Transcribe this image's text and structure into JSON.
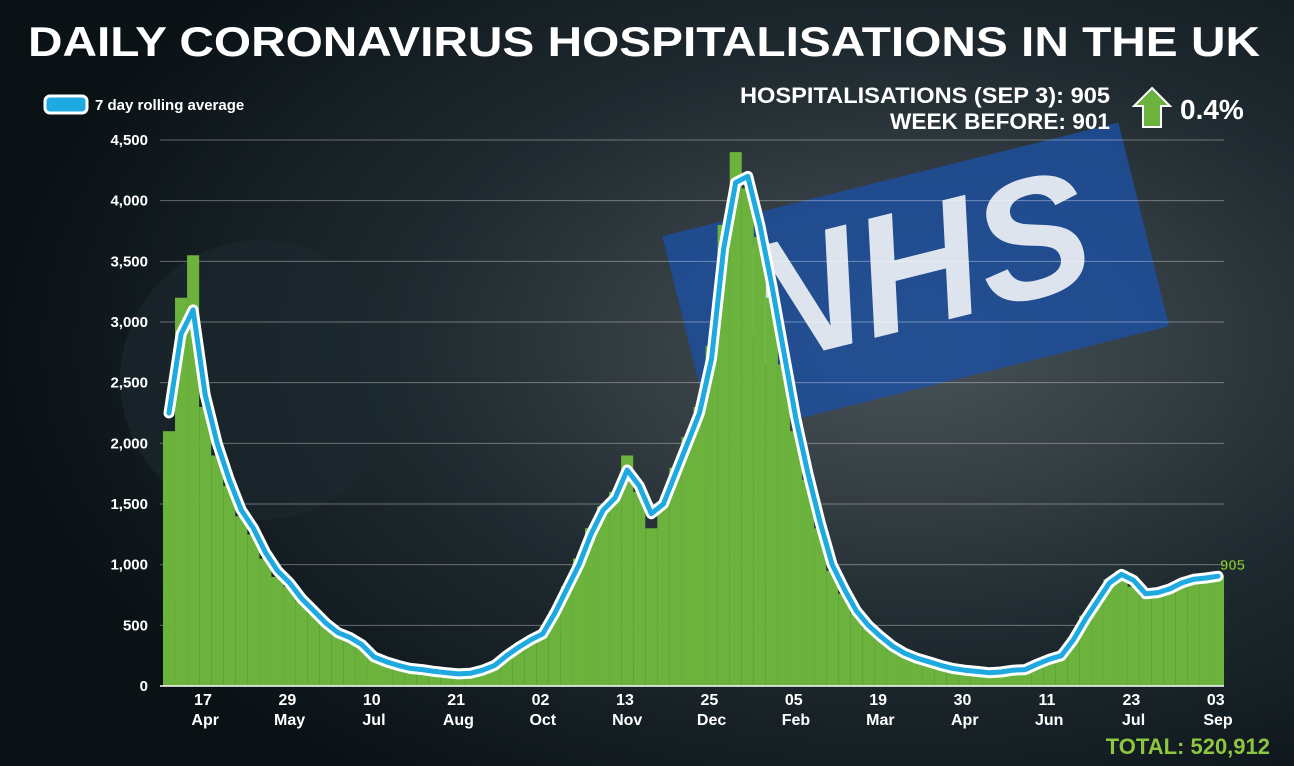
{
  "chart_data": {
    "type": "bar-line",
    "title": "DAILY CORONAVIRUS HOSPITALISATIONS  IN THE UK",
    "background_sign": "NHS",
    "stat_today": "HOSPITALISATIONS (SEP 3): 905",
    "stat_week_before": "WEEK BEFORE: 901",
    "stat_change": "0.4%",
    "end_label": "905",
    "total": "TOTAL: 520,912",
    "categories": [
      null,
      null,
      null,
      "17 Apr",
      null,
      null,
      null,
      null,
      null,
      null,
      "29 May",
      null,
      null,
      null,
      null,
      null,
      null,
      "10 Jul",
      null,
      null,
      null,
      null,
      null,
      null,
      "21 Aug",
      null,
      null,
      null,
      null,
      null,
      null,
      "02 Oct",
      null,
      null,
      null,
      null,
      null,
      null,
      "13 Nov",
      null,
      null,
      null,
      null,
      null,
      null,
      "25 Dec",
      null,
      null,
      null,
      null,
      null,
      null,
      "05 Feb",
      null,
      null,
      null,
      null,
      null,
      null,
      "19 Mar",
      null,
      null,
      null,
      null,
      null,
      null,
      "30 Apr",
      null,
      null,
      null,
      null,
      null,
      null,
      "11 Jun",
      null,
      null,
      null,
      null,
      null,
      null,
      "23 Jul",
      null,
      null,
      null,
      null,
      null,
      null,
      "03 Sep"
    ],
    "series": [
      {
        "kind": "bar",
        "color": "#6cb33e",
        "values": [
          2100,
          3200,
          3550,
          2300,
          1900,
          1650,
          1400,
          1250,
          1050,
          900,
          820,
          700,
          600,
          500,
          430,
          380,
          330,
          230,
          190,
          165,
          140,
          130,
          115,
          105,
          95,
          110,
          140,
          180,
          260,
          330,
          400,
          450,
          620,
          820,
          1050,
          1300,
          1480,
          1600,
          1900,
          1600,
          1300,
          1520,
          1800,
          2050,
          2300,
          2800,
          3800,
          4400,
          4100,
          3700,
          3200,
          2650,
          2100,
          1700,
          1300,
          950,
          760,
          600,
          480,
          400,
          320,
          260,
          220,
          190,
          160,
          140,
          125,
          115,
          105,
          120,
          135,
          140,
          190,
          230,
          260,
          400,
          580,
          720,
          880,
          950,
          820,
          740,
          780,
          810,
          870,
          900,
          900,
          910
        ]
      },
      {
        "name": "7 day rolling average",
        "kind": "line",
        "color": "#1ea9e1",
        "values": [
          2250,
          2900,
          3100,
          2400,
          2000,
          1700,
          1450,
          1300,
          1100,
          950,
          850,
          720,
          620,
          520,
          440,
          400,
          340,
          240,
          200,
          170,
          145,
          135,
          120,
          110,
          100,
          105,
          130,
          170,
          250,
          320,
          380,
          430,
          600,
          800,
          1000,
          1250,
          1450,
          1550,
          1780,
          1650,
          1420,
          1500,
          1750,
          2000,
          2250,
          2700,
          3600,
          4150,
          4200,
          3800,
          3300,
          2750,
          2200,
          1750,
          1350,
          1000,
          800,
          620,
          500,
          410,
          330,
          270,
          230,
          200,
          170,
          145,
          130,
          120,
          110,
          115,
          130,
          135,
          180,
          220,
          250,
          380,
          550,
          700,
          850,
          920,
          870,
          760,
          770,
          800,
          850,
          880,
          890,
          905
        ]
      }
    ],
    "ylim": [
      0,
      4500
    ],
    "yticks": [
      0,
      500,
      {
        "value": 1000,
        "label": "1,000"
      },
      {
        "value": 1500,
        "label": "1,500"
      },
      {
        "value": 2000,
        "label": "2,000"
      },
      {
        "value": 2500,
        "label": "2,500"
      },
      {
        "value": 3000,
        "label": "3,000"
      },
      {
        "value": 3500,
        "label": "3,500"
      },
      {
        "value": 4000,
        "label": "4,000"
      },
      {
        "value": 4500,
        "label": "4,500"
      }
    ],
    "grid": true
  }
}
